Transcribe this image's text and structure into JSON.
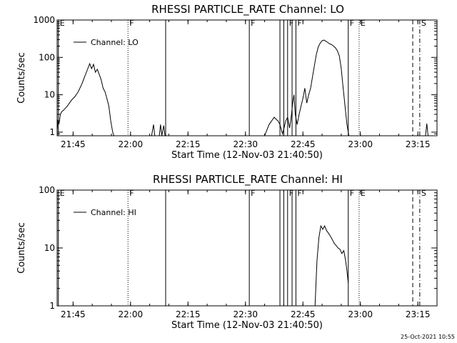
{
  "footer_timestamp": "25-Oct-2021 10:55",
  "chart_data": [
    {
      "type": "line",
      "title": "RHESSI PARTICLE_RATE Channel: LO",
      "xlabel": "Start Time (12-Nov-03 21:40:50)",
      "ylabel": "Counts/sec",
      "yscale": "log",
      "xlim": [
        "21:40:50",
        "23:20:00"
      ],
      "ylim": [
        0.8,
        1000
      ],
      "x_ticks": [
        "21:45",
        "22:00",
        "22:15",
        "22:30",
        "22:45",
        "23:00",
        "23:15"
      ],
      "y_ticks": [
        "1",
        "10",
        "100",
        "1000"
      ],
      "legend": {
        "label": "Channel: LO",
        "position": "top-left"
      },
      "markers": [
        {
          "time": "21:41:10",
          "label": "E",
          "style": "solid"
        },
        {
          "time": "21:59:20",
          "label": "F",
          "style": "dotted"
        },
        {
          "time": "22:09:10",
          "label": "",
          "style": "solid"
        },
        {
          "time": "22:31:00",
          "label": "F",
          "style": "solid"
        },
        {
          "time": "22:39:00",
          "label": "",
          "style": "solid"
        },
        {
          "time": "22:40:00",
          "label": "",
          "style": "solid"
        },
        {
          "time": "22:41:00",
          "label": "F",
          "style": "solid"
        },
        {
          "time": "22:42:10",
          "label": "",
          "style": "solid"
        },
        {
          "time": "22:43:10",
          "label": "F",
          "style": "solid"
        },
        {
          "time": "22:56:50",
          "label": "F",
          "style": "solid"
        },
        {
          "time": "22:59:40",
          "label": "E",
          "style": "dotted"
        },
        {
          "time": "23:13:40",
          "label": "",
          "style": "dashed"
        },
        {
          "time": "23:15:30",
          "label": "S",
          "style": "dashdot"
        }
      ],
      "series": [
        {
          "segments": [
            [
              [
                "21:40:50",
                1
              ],
              [
                "21:41:00",
                2
              ],
              [
                "21:41:20",
                1.7
              ],
              [
                "21:41:40",
                3
              ],
              [
                "21:42:00",
                3.5
              ],
              [
                "21:42:40",
                4
              ],
              [
                "21:43:30",
                5
              ],
              [
                "21:44:30",
                7
              ],
              [
                "21:45:30",
                9
              ],
              [
                "21:46:20",
                12
              ],
              [
                "21:47:20",
                20
              ],
              [
                "21:48:00",
                30
              ],
              [
                "21:48:40",
                45
              ],
              [
                "21:49:20",
                68
              ],
              [
                "21:49:50",
                50
              ],
              [
                "21:50:20",
                65
              ],
              [
                "21:50:50",
                40
              ],
              [
                "21:51:20",
                48
              ],
              [
                "21:51:50",
                35
              ],
              [
                "21:52:20",
                25
              ],
              [
                "21:52:50",
                15
              ],
              [
                "21:53:20",
                12
              ],
              [
                "21:53:50",
                8
              ],
              [
                "21:54:20",
                5
              ],
              [
                "21:54:50",
                2
              ],
              [
                "21:55:20",
                1
              ],
              [
                "21:55:40",
                0.8
              ]
            ],
            [
              [
                "22:05:30",
                0.8
              ],
              [
                "22:06:00",
                1.6
              ],
              [
                "22:06:20",
                0.8
              ]
            ],
            [
              [
                "22:07:30",
                0.8
              ],
              [
                "22:07:50",
                1.6
              ],
              [
                "22:08:10",
                0.8
              ],
              [
                "22:08:40",
                1.5
              ],
              [
                "22:09:00",
                0.8
              ]
            ],
            [
              [
                "22:35:00",
                0.8
              ],
              [
                "22:35:40",
                1.2
              ],
              [
                "22:36:10",
                1.6
              ],
              [
                "22:36:50",
                2
              ],
              [
                "22:37:30",
                2.5
              ],
              [
                "22:38:00",
                2.2
              ],
              [
                "22:38:30",
                2
              ],
              [
                "22:39:00",
                1.6
              ],
              [
                "22:39:20",
                1.2
              ],
              [
                "22:39:40",
                0.9
              ],
              [
                "22:40:00",
                1.2
              ],
              [
                "22:40:30",
                2
              ],
              [
                "22:41:00",
                2.5
              ],
              [
                "22:41:30",
                1.3
              ],
              [
                "22:41:50",
                2
              ],
              [
                "22:42:20",
                6
              ],
              [
                "22:42:40",
                10
              ],
              [
                "22:43:00",
                3
              ],
              [
                "22:43:30",
                1.6
              ],
              [
                "22:44:00",
                3
              ],
              [
                "22:44:30",
                5
              ],
              [
                "22:45:00",
                8
              ],
              [
                "22:45:30",
                15
              ],
              [
                "22:46:00",
                6
              ],
              [
                "22:46:30",
                10
              ],
              [
                "22:47:00",
                15
              ],
              [
                "22:47:30",
                30
              ],
              [
                "22:48:00",
                60
              ],
              [
                "22:48:30",
                120
              ],
              [
                "22:49:00",
                190
              ],
              [
                "22:49:30",
                240
              ],
              [
                "22:50:00",
                280
              ],
              [
                "22:50:30",
                290
              ],
              [
                "22:51:00",
                270
              ],
              [
                "22:51:30",
                250
              ],
              [
                "22:52:00",
                230
              ],
              [
                "22:52:30",
                220
              ],
              [
                "22:53:00",
                200
              ],
              [
                "22:53:30",
                180
              ],
              [
                "22:54:00",
                150
              ],
              [
                "22:54:30",
                110
              ],
              [
                "22:55:00",
                50
              ],
              [
                "22:55:30",
                15
              ],
              [
                "22:56:00",
                5
              ],
              [
                "22:56:30",
                1.6
              ],
              [
                "22:57:00",
                0.8
              ]
            ],
            [
              [
                "23:17:00",
                0.8
              ],
              [
                "23:17:20",
                1.7
              ],
              [
                "23:17:40",
                0.8
              ]
            ]
          ]
        }
      ]
    },
    {
      "type": "line",
      "title": "RHESSI PARTICLE_RATE Channel: HI",
      "xlabel": "Start Time (12-Nov-03 21:40:50)",
      "ylabel": "Counts/sec",
      "yscale": "log",
      "xlim": [
        "21:40:50",
        "23:20:00"
      ],
      "ylim": [
        1,
        100
      ],
      "x_ticks": [
        "21:45",
        "22:00",
        "22:15",
        "22:30",
        "22:45",
        "23:00",
        "23:15"
      ],
      "y_ticks": [
        "1",
        "10",
        "100"
      ],
      "legend": {
        "label": "Channel: HI",
        "position": "top-left"
      },
      "markers": [
        {
          "time": "21:41:10",
          "label": "E",
          "style": "solid"
        },
        {
          "time": "21:59:20",
          "label": "F",
          "style": "dotted"
        },
        {
          "time": "22:09:10",
          "label": "",
          "style": "solid"
        },
        {
          "time": "22:31:00",
          "label": "F",
          "style": "solid"
        },
        {
          "time": "22:39:00",
          "label": "",
          "style": "solid"
        },
        {
          "time": "22:40:00",
          "label": "",
          "style": "solid"
        },
        {
          "time": "22:41:00",
          "label": "F",
          "style": "solid"
        },
        {
          "time": "22:42:10",
          "label": "",
          "style": "solid"
        },
        {
          "time": "22:43:10",
          "label": "F",
          "style": "solid"
        },
        {
          "time": "22:56:50",
          "label": "F",
          "style": "solid"
        },
        {
          "time": "22:59:40",
          "label": "E",
          "style": "dotted"
        },
        {
          "time": "23:13:40",
          "label": "",
          "style": "dashed"
        },
        {
          "time": "23:15:30",
          "label": "S",
          "style": "dashdot"
        }
      ],
      "series": [
        {
          "segments": [
            [
              [
                "22:48:10",
                1
              ],
              [
                "22:48:40",
                6
              ],
              [
                "22:49:10",
                15
              ],
              [
                "22:49:40",
                24
              ],
              [
                "22:50:10",
                21
              ],
              [
                "22:50:40",
                24
              ],
              [
                "22:51:10",
                20
              ],
              [
                "22:51:40",
                18
              ],
              [
                "22:52:10",
                16
              ],
              [
                "22:52:40",
                14
              ],
              [
                "22:53:10",
                12
              ],
              [
                "22:53:40",
                11
              ],
              [
                "22:54:10",
                10
              ],
              [
                "22:54:40",
                9.5
              ],
              [
                "22:55:10",
                8
              ],
              [
                "22:55:40",
                9
              ],
              [
                "22:56:10",
                6
              ],
              [
                "22:56:30",
                4
              ],
              [
                "22:56:50",
                2.5
              ]
            ]
          ]
        }
      ]
    }
  ]
}
